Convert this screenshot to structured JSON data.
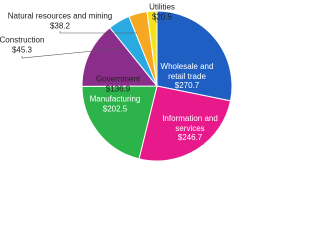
{
  "chart_data": {
    "type": "pie",
    "categories": [
      "Wholesale and retail trade",
      "Information and services",
      "Manufacturing",
      "Government",
      "Construction",
      "Natural resources and mining",
      "Utilities"
    ],
    "values": [
      270.7,
      246.7,
      202.5,
      136.9,
      45.3,
      38.2,
      20.5
    ],
    "value_labels": [
      "$270.7",
      "$246.7",
      "$202.5",
      "$136.9",
      "$45.3",
      "$38.2",
      "$20.5"
    ],
    "colors": [
      "#1f5fc4",
      "#e8198b",
      "#2cb34a",
      "#8b2d8b",
      "#29abe2",
      "#f7a823",
      "#f5e31a"
    ]
  }
}
